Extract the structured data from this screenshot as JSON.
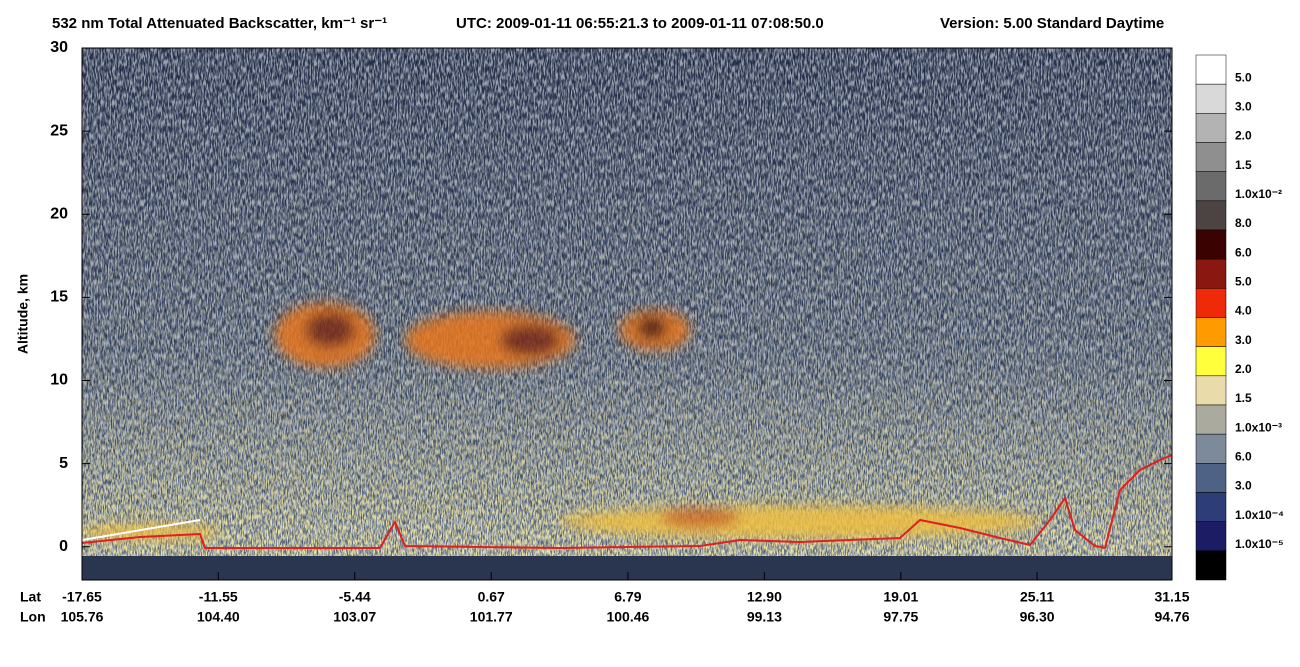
{
  "chart_data": {
    "type": "heatmap",
    "title": "532 nm Total Attenuated Backscatter, km⁻¹ sr⁻¹",
    "time_range": "UTC:  2009-01-11 06:55:21.3  to  2009-01-11 07:08:50.0",
    "version": "Version: 5.00  Standard  Daytime",
    "ylabel": "Altitude, km",
    "ylim": [
      -2,
      30
    ],
    "yticks": [
      0,
      5,
      10,
      15,
      20,
      25,
      30
    ],
    "xlim": [
      -17.65,
      31.15
    ],
    "x_rows": [
      {
        "name": "Lat",
        "ticks": [
          -17.65,
          -11.55,
          -5.44,
          0.67,
          6.79,
          {
            "value": 12.9,
            "label": "12.90"
          },
          19.01,
          25.11,
          31.15
        ]
      },
      {
        "name": "Lon",
        "ticks": [
          105.76,
          {
            "value": 104.4,
            "label": "104.40"
          },
          103.07,
          101.77,
          100.46,
          99.13,
          97.75,
          {
            "value": 96.3,
            "label": "96.30"
          },
          94.76
        ]
      }
    ],
    "colorbar": {
      "colors": [
        "#ffffff",
        "#d9d9d9",
        "#b3b3b3",
        "#8f8f8f",
        "#6b6b6b",
        "#4b4442",
        "#3b0202",
        "#8a1710",
        "#ee2a08",
        "#ff9a00",
        "#ffff3c",
        "#eadbaa",
        "#aaaa9e",
        "#7c8a9a",
        "#4d6284",
        "#2c3d78",
        "#1c1c64",
        "#000000"
      ],
      "labels": [
        "5.0",
        "3.0",
        "2.0",
        "1.5",
        "1.0x10⁻²",
        "8.0",
        "6.0",
        "5.0",
        "4.0",
        "3.0",
        "2.0",
        "1.5",
        "1.0x10⁻³",
        "6.0",
        "3.0",
        "1.0x10⁻⁴",
        "1.0x10⁻⁵"
      ]
    }
  }
}
